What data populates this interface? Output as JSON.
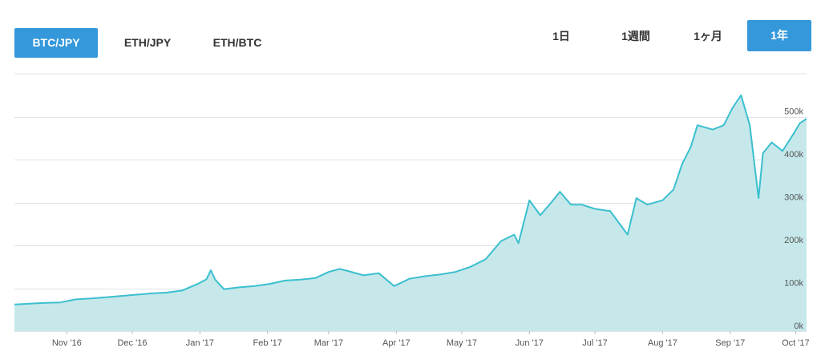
{
  "pairs": [
    {
      "label": "BTC/JPY",
      "active": true
    },
    {
      "label": "ETH/JPY",
      "active": false
    },
    {
      "label": "ETH/BTC",
      "active": false
    }
  ],
  "ranges": [
    {
      "label": "1日",
      "active": false
    },
    {
      "label": "1週間",
      "active": false
    },
    {
      "label": "1ヶ月",
      "active": false
    },
    {
      "label": "1年",
      "active": true
    }
  ],
  "colors": {
    "accent": "#3498db",
    "line": "#3bbfcf",
    "area": "#c6e8ea",
    "grid": "#dde3ea"
  },
  "chart_data": {
    "type": "area",
    "title": "",
    "xlabel": "",
    "ylabel": "",
    "ylim": [
      0,
      600000
    ],
    "grid": true,
    "y_axis_position": "right",
    "y_ticks": [
      0,
      100000,
      200000,
      300000,
      400000,
      500000
    ],
    "y_tick_labels": [
      "0k",
      "100k",
      "200k",
      "300k",
      "400k",
      "500k"
    ],
    "x_ticks": [
      "2016-11-01",
      "2016-12-01",
      "2017-01-01",
      "2017-02-01",
      "2017-03-01",
      "2017-04-01",
      "2017-05-01",
      "2017-06-01",
      "2017-07-01",
      "2017-08-01",
      "2017-09-01",
      "2017-10-01"
    ],
    "x_tick_labels": [
      "Nov '16",
      "Dec '16",
      "Jan '17",
      "Feb '17",
      "Mar '17",
      "Apr '17",
      "May '17",
      "Jun '17",
      "Jul '17",
      "Aug '17",
      "Sep '17",
      "Oct '17"
    ],
    "series": [
      {
        "x": [
          "2016-10-08",
          "2016-10-15",
          "2016-10-22",
          "2016-10-29",
          "2016-11-05",
          "2016-11-12",
          "2016-11-19",
          "2016-11-26",
          "2016-12-03",
          "2016-12-10",
          "2016-12-17",
          "2016-12-24",
          "2016-12-31",
          "2017-01-04",
          "2017-01-06",
          "2017-01-08",
          "2017-01-12",
          "2017-01-19",
          "2017-01-26",
          "2017-02-02",
          "2017-02-09",
          "2017-02-16",
          "2017-02-23",
          "2017-03-01",
          "2017-03-06",
          "2017-03-10",
          "2017-03-17",
          "2017-03-24",
          "2017-03-31",
          "2017-04-07",
          "2017-04-14",
          "2017-04-21",
          "2017-04-28",
          "2017-05-05",
          "2017-05-12",
          "2017-05-19",
          "2017-05-25",
          "2017-05-27",
          "2017-06-01",
          "2017-06-06",
          "2017-06-11",
          "2017-06-15",
          "2017-06-20",
          "2017-06-25",
          "2017-07-01",
          "2017-07-08",
          "2017-07-16",
          "2017-07-20",
          "2017-07-25",
          "2017-08-01",
          "2017-08-06",
          "2017-08-10",
          "2017-08-14",
          "2017-08-17",
          "2017-08-24",
          "2017-08-29",
          "2017-09-02",
          "2017-09-06",
          "2017-09-10",
          "2017-09-14",
          "2017-09-16",
          "2017-09-20",
          "2017-09-25",
          "2017-09-30",
          "2017-10-03",
          "2017-10-06"
        ],
        "values": [
          62000,
          64000,
          66000,
          67000,
          74000,
          76000,
          79000,
          82000,
          85000,
          88000,
          90000,
          95000,
          110000,
          121000,
          142000,
          120000,
          98000,
          102000,
          105000,
          110000,
          118000,
          120000,
          124000,
          138000,
          145000,
          140000,
          130000,
          135000,
          105000,
          122000,
          128000,
          132000,
          138000,
          150000,
          168000,
          210000,
          225000,
          205000,
          305000,
          270000,
          300000,
          325000,
          295000,
          295000,
          285000,
          280000,
          225000,
          310000,
          295000,
          305000,
          330000,
          390000,
          430000,
          480000,
          470000,
          480000,
          520000,
          550000,
          480000,
          310000,
          415000,
          440000,
          420000,
          460000,
          485000,
          495000
        ]
      }
    ]
  }
}
